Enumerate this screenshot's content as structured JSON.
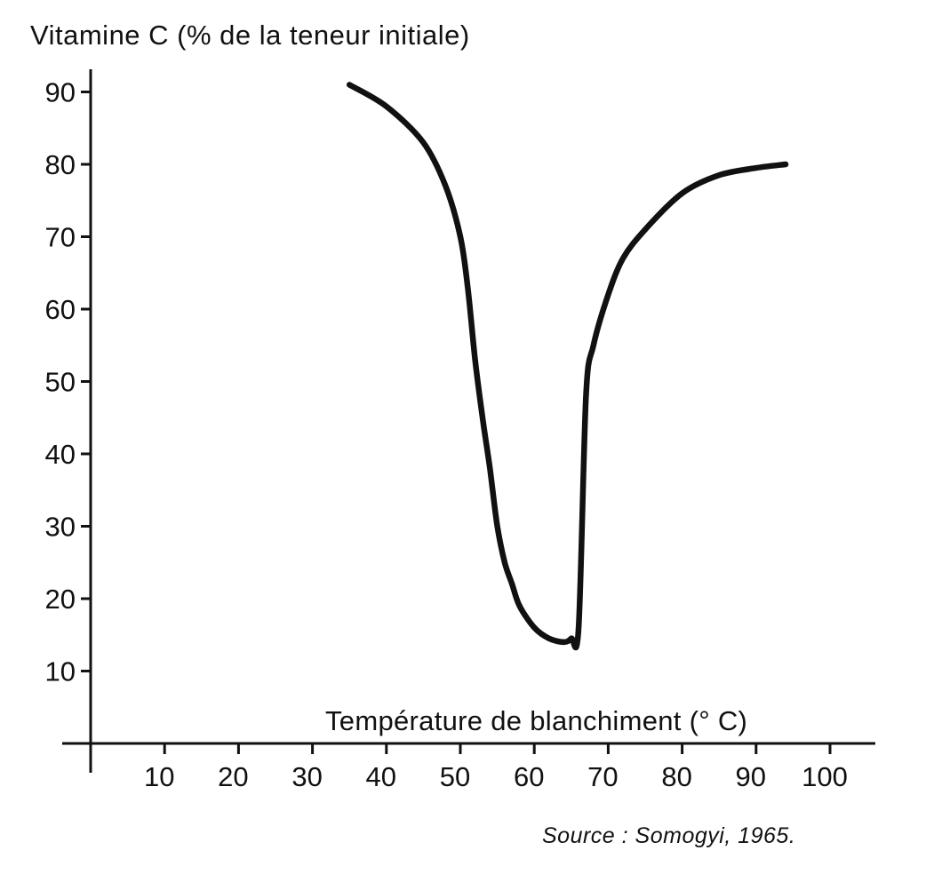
{
  "chart_data": {
    "type": "line",
    "ylabel": "Vitamine C (% de la teneur initiale)",
    "xlabel": "Température de blanchiment (° C)",
    "source": "Source : Somogyi, 1965.",
    "x_ticks": [
      "10",
      "20",
      "30",
      "40",
      "50",
      "60",
      "70",
      "80",
      "90",
      "100"
    ],
    "y_ticks": [
      "10",
      "20",
      "30",
      "40",
      "50",
      "60",
      "70",
      "80",
      "90"
    ],
    "xlim": [
      0,
      105
    ],
    "ylim": [
      0,
      95
    ],
    "grid": false,
    "series": [
      {
        "x": [
          35,
          40,
          45,
          48,
          50,
          51,
          52,
          53,
          54,
          55,
          56,
          57,
          58,
          60,
          62,
          64,
          65,
          66,
          67,
          68,
          70,
          72,
          75,
          80,
          85,
          90,
          94
        ],
        "y": [
          91,
          88,
          83,
          77,
          70,
          63,
          53,
          45,
          38,
          30,
          25,
          22,
          19,
          16,
          14.5,
          14,
          14.5,
          16,
          48,
          55,
          62,
          67,
          71,
          76,
          78.5,
          79.5,
          80
        ]
      }
    ]
  }
}
